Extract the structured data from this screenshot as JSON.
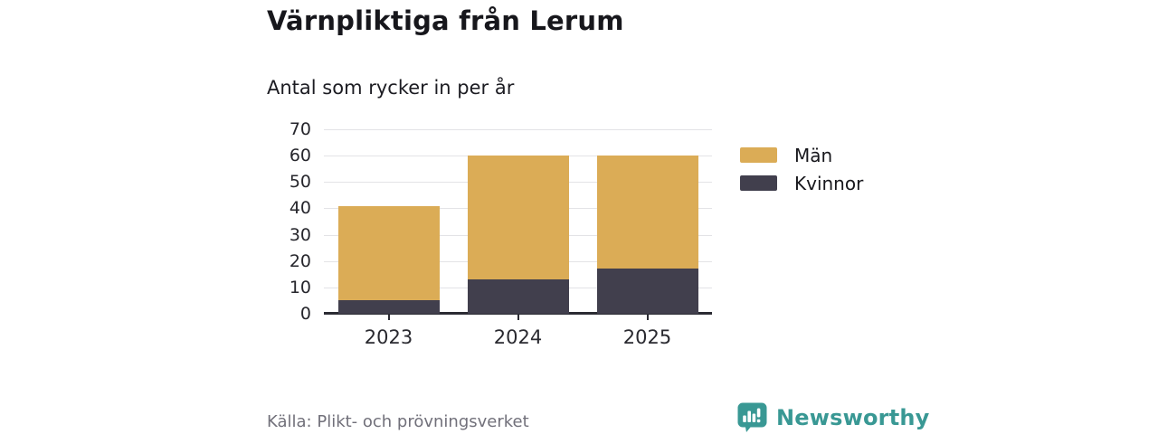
{
  "title": "Värnpliktiga från Lerum",
  "subtitle": "Antal som rycker in per år",
  "source": "Källa: Plikt- och prövningsverket",
  "brand": {
    "name": "Newsworthy",
    "color": "#399894",
    "icon": "bar-chart-speech-bubble"
  },
  "colors": {
    "men": "#DBAC56",
    "women": "#413F4D",
    "grid": "#E3E3E6",
    "axis": "#2B2B33",
    "title_text": "#17171C",
    "muted_text": "#71707A"
  },
  "chart_data": {
    "type": "bar",
    "stacked": true,
    "title": "Värnpliktiga från Lerum",
    "subtitle": "Antal som rycker in per år",
    "xlabel": "",
    "ylabel": "",
    "categories": [
      "2023",
      "2024",
      "2025"
    ],
    "series": [
      {
        "name": "Män",
        "color": "#DBAC56",
        "values": [
          36,
          47,
          43
        ]
      },
      {
        "name": "Kvinnor",
        "color": "#413F4D",
        "values": [
          5,
          13,
          17
        ]
      }
    ],
    "stack_order_bottom_to_top": [
      "Kvinnor",
      "Män"
    ],
    "totals": [
      41,
      60,
      60
    ],
    "ylim": [
      0,
      70
    ],
    "yticks": [
      0,
      10,
      20,
      30,
      40,
      50,
      60,
      70
    ],
    "grid": true,
    "legend_position": "right"
  }
}
